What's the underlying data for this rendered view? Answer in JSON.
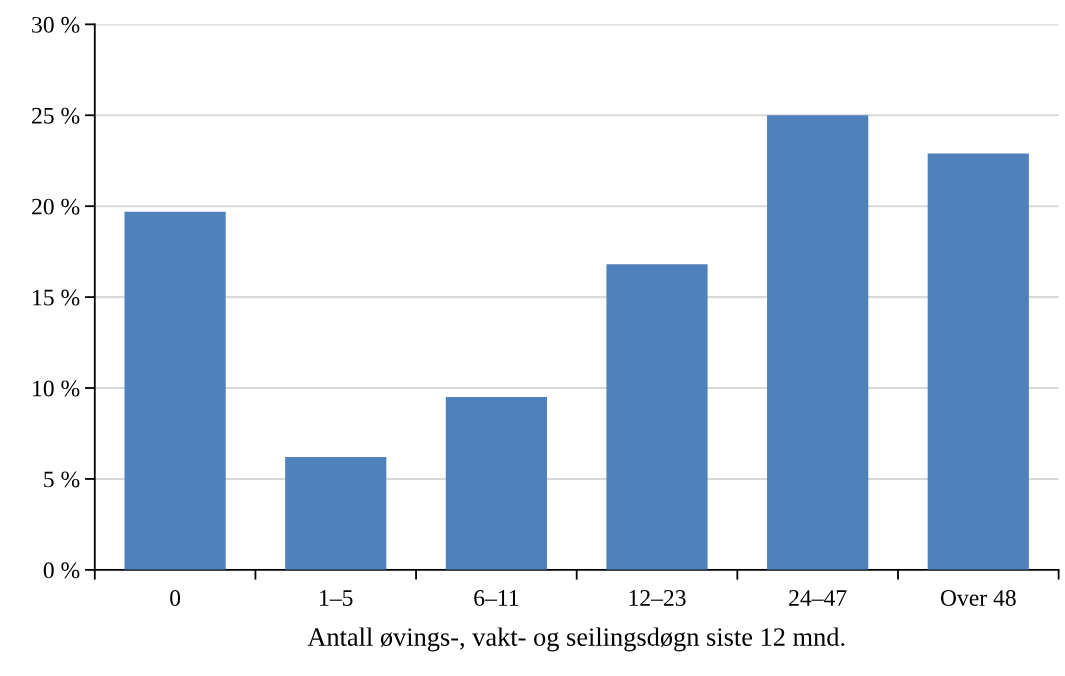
{
  "chart_data": {
    "type": "bar",
    "xlabel": "Antall øvings-, vakt- og seilingsdøgn siste 12 mnd.",
    "categories": [
      "0",
      "1–5",
      "6–11",
      "12–23",
      "24–47",
      "Over 48"
    ],
    "values": [
      19.7,
      6.2,
      9.5,
      16.8,
      25.0,
      22.9
    ],
    "color": "#4f81bd",
    "ylim": [
      0,
      30
    ],
    "yticks": [
      {
        "value": 0,
        "label": "0 %"
      },
      {
        "value": 5,
        "label": "5 %"
      },
      {
        "value": 10,
        "label": "10 %"
      },
      {
        "value": 15,
        "label": "15 %"
      },
      {
        "value": 20,
        "label": "20 %"
      },
      {
        "value": 25,
        "label": "25 %"
      },
      {
        "value": 30,
        "label": "30 %"
      }
    ],
    "grid": "y"
  }
}
